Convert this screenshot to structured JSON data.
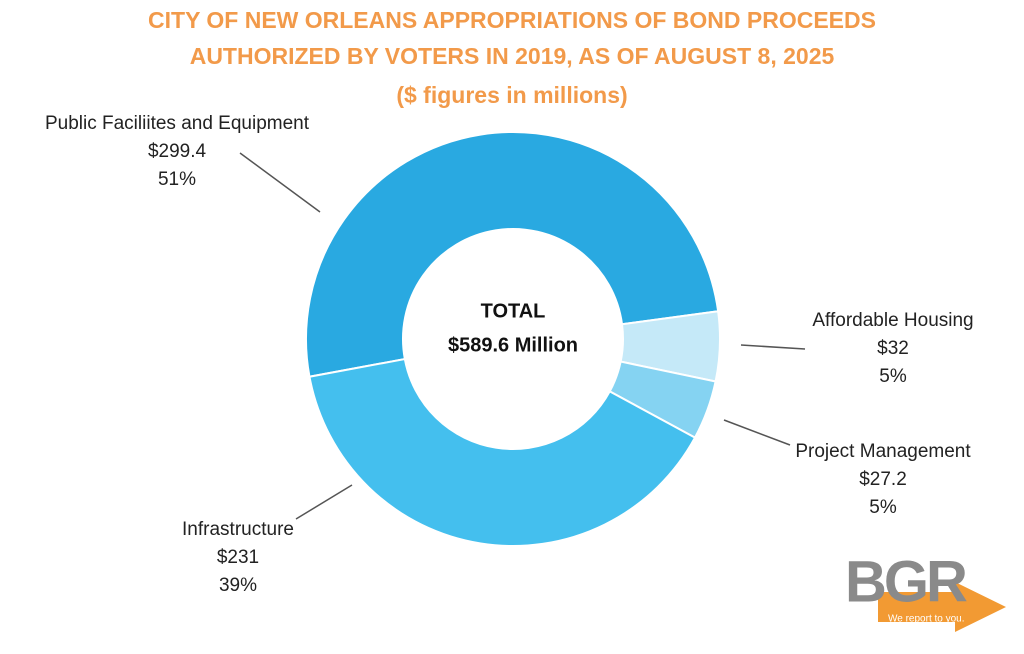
{
  "chart_data": {
    "type": "pie",
    "title": "CITY OF NEW ORLEANS APPROPRIATIONS OF BOND PROCEEDS",
    "subtitle": "AUTHORIZED BY VOTERS IN 2019, AS OF AUGUST 8, 2025",
    "units_note": "($ figures in millions)",
    "center_label": "TOTAL",
    "center_value": "$589.6 Million",
    "categories": [
      "Public Faciliites and Equipment",
      "Affordable Housing",
      "Project Management",
      "Infrastructure"
    ],
    "values": [
      299.4,
      32,
      27.2,
      231
    ],
    "value_labels": [
      "$299.4",
      "$32",
      "$27.2",
      "$231"
    ],
    "share_labels": [
      "51%",
      "5%",
      "5%",
      "39%"
    ],
    "colors": [
      "#29a9e1",
      "#c5e9f8",
      "#85d3f2",
      "#44bfee"
    ]
  },
  "logo": {
    "text": "BGR",
    "tagline": "We report to you."
  }
}
